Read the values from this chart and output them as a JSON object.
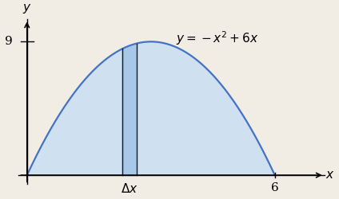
{
  "x_min": 0,
  "x_max": 6,
  "y_min": 0,
  "y_max": 9,
  "curve_color": "#4472C4",
  "fill_color": "#cfe0f0",
  "strip_x1": 2.3,
  "strip_x2": 2.65,
  "strip_fill_color": "#a8c8e8",
  "strip_edge_color": "#1a1a1a",
  "axis_color": "black",
  "background_color": "#f2ede4",
  "label_fontsize": 11,
  "eq_fontsize": 11,
  "axis_label_y": "$y$",
  "axis_label_x": "$x$",
  "tick_y_val": 9,
  "tick_x_val": 6,
  "delta_x_label": "$\\Delta x$",
  "equation_label": "$y = -x^2 + 6x$"
}
